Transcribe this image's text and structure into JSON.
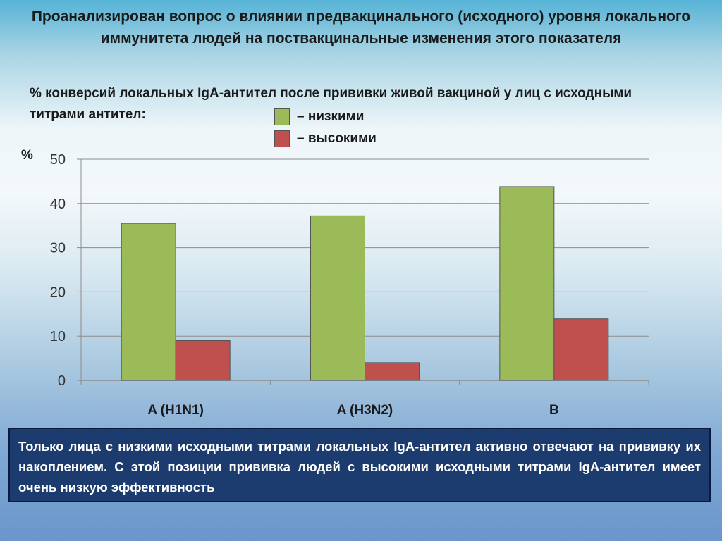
{
  "slide": {
    "title": "Проанализирован вопрос о влиянии предвакцинального (исходного) уровня локального иммунитета людей на поствакцинальные изменения этого показателя",
    "subtitle": "%  конверсий локальных IgA-антител после прививки живой вакциной у лиц с исходными титрами антител:",
    "y_unit": "%",
    "conclusion": "Только лица с низкими исходными титрами локальных IgA-антител активно отвечают на прививку их накоплением. С этой позиции прививка людей с высокими исходными титрами IgA-антител имеет очень низкую эффективность"
  },
  "legend": {
    "low": "– низкими",
    "high": "– высокими"
  },
  "colors": {
    "low": "#9bbb59",
    "high": "#c0504d",
    "conclusion_bg": "#1c3b6e"
  },
  "chart_data": {
    "type": "bar",
    "categories": [
      "A (H1N1)",
      "A (H3N2)",
      "B"
    ],
    "series": [
      {
        "name": "– низкими",
        "values": [
          35.5,
          37.2,
          43.8
        ]
      },
      {
        "name": "– высокими",
        "values": [
          9,
          4,
          13.9
        ]
      }
    ],
    "ylabel": "%",
    "ylim": [
      0,
      50
    ],
    "yticks": [
      0,
      10,
      20,
      30,
      40,
      50
    ],
    "grid": true,
    "legend_position": "top"
  }
}
